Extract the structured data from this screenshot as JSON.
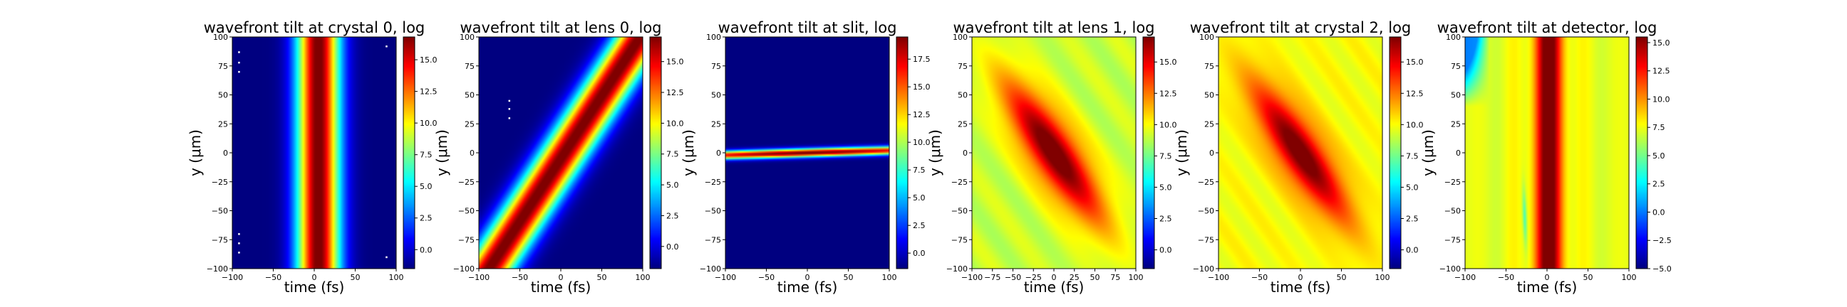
{
  "chart_data": [
    {
      "type": "heatmap",
      "title": "wavefront tilt at crystal 0, log",
      "xlabel": "time (fs)",
      "ylabel": "y (μm)",
      "xlim": [
        -100,
        100
      ],
      "ylim": [
        -100,
        100
      ],
      "x_ticks": [
        -100,
        -50,
        0,
        50,
        100
      ],
      "y_ticks": [
        -100,
        -75,
        -50,
        -25,
        0,
        25,
        50,
        75,
        100
      ],
      "colorbar": {
        "colormap": "jet",
        "range": [
          -1.5,
          16.8
        ],
        "ticks": [
          "0.0",
          "2.5",
          "5.0",
          "7.5",
          "10.0",
          "12.5",
          "15.0"
        ]
      },
      "pattern": "vertical band centered near t = 5 fs, width ~45 fs, uniform in y"
    },
    {
      "type": "heatmap",
      "title": "wavefront tilt at lens 0, log",
      "xlabel": "time (fs)",
      "ylabel": "y (μm)",
      "xlim": [
        -100,
        100
      ],
      "ylim": [
        -100,
        100
      ],
      "x_ticks": [
        -100,
        -50,
        0,
        50,
        100
      ],
      "y_ticks": [
        -100,
        -75,
        -50,
        -25,
        0,
        25,
        50,
        75,
        100
      ],
      "colorbar": {
        "colormap": "jet",
        "range": [
          -1.8,
          17.0
        ],
        "ticks": [
          "0.0",
          "2.5",
          "5.0",
          "7.5",
          "10.0",
          "12.5",
          "15.0"
        ]
      },
      "pattern": "diagonal band tilted up-right through the origin"
    },
    {
      "type": "heatmap",
      "title": "wavefront tilt at slit, log",
      "xlabel": "time (fs)",
      "ylabel": "y (μm)",
      "xlim": [
        -100,
        100
      ],
      "ylim": [
        -100,
        100
      ],
      "x_ticks": [
        -100,
        -50,
        0,
        50,
        100
      ],
      "y_ticks": [
        -100,
        -75,
        -50,
        -25,
        0,
        25,
        50,
        75,
        100
      ],
      "colorbar": {
        "colormap": "jet",
        "range": [
          -1.4,
          19.5
        ],
        "ticks": [
          "0.0",
          "2.5",
          "5.0",
          "7.5",
          "10.0",
          "12.5",
          "15.0",
          "17.5"
        ]
      },
      "pattern": "narrow horizontal stripe at y ≈ 0, slight upward tilt"
    },
    {
      "type": "heatmap",
      "title": "wavefront tilt at lens 1, log",
      "xlabel": "time (fs)",
      "ylabel": "y (μm)",
      "xlim": [
        -100,
        100
      ],
      "ylim": [
        -100,
        100
      ],
      "x_ticks": [
        -100,
        -75,
        -50,
        -25,
        0,
        25,
        50,
        75,
        100
      ],
      "y_ticks": [
        -100,
        -75,
        -50,
        -25,
        0,
        25,
        50,
        75,
        100
      ],
      "colorbar": {
        "colormap": "jet",
        "range": [
          -1.5,
          17.0
        ],
        "ticks": [
          "0.0",
          "2.5",
          "5.0",
          "7.5",
          "10.0",
          "12.5",
          "15.0"
        ]
      },
      "pattern": "broad diagonal ellipse tilted down-right on a yellow-green background"
    },
    {
      "type": "heatmap",
      "title": "wavefront tilt at crystal 2, log",
      "xlabel": "time (fs)",
      "ylabel": "y (μm)",
      "xlim": [
        -100,
        100
      ],
      "ylim": [
        -100,
        100
      ],
      "x_ticks": [
        -100,
        -50,
        0,
        50,
        100
      ],
      "y_ticks": [
        -100,
        -75,
        -50,
        -25,
        0,
        25,
        50,
        75,
        100
      ],
      "colorbar": {
        "colormap": "jet",
        "range": [
          -1.5,
          17.0
        ],
        "ticks": [
          "0.0",
          "2.5",
          "5.0",
          "7.5",
          "10.0",
          "12.5",
          "15.0"
        ]
      },
      "pattern": "diagonal ellipse tilted down-right on a yellow background"
    },
    {
      "type": "heatmap",
      "title": "wavefront tilt at detector, log",
      "xlabel": "time (fs)",
      "ylabel": "y (μm)",
      "xlim": [
        -100,
        100
      ],
      "ylim": [
        -100,
        100
      ],
      "x_ticks": [
        -100,
        -50,
        0,
        50,
        100
      ],
      "y_ticks": [
        -100,
        -75,
        -50,
        -25,
        0,
        25,
        50,
        75,
        100
      ],
      "colorbar": {
        "colormap": "jet",
        "range": [
          -5.0,
          15.5
        ],
        "ticks": [
          "-5.0",
          "-2.5",
          "0.0",
          "2.5",
          "5.0",
          "7.5",
          "10.0",
          "12.5",
          "15.0"
        ]
      },
      "pattern": "vertical band near t = 0 with side fringes on a yellow-green background"
    }
  ]
}
